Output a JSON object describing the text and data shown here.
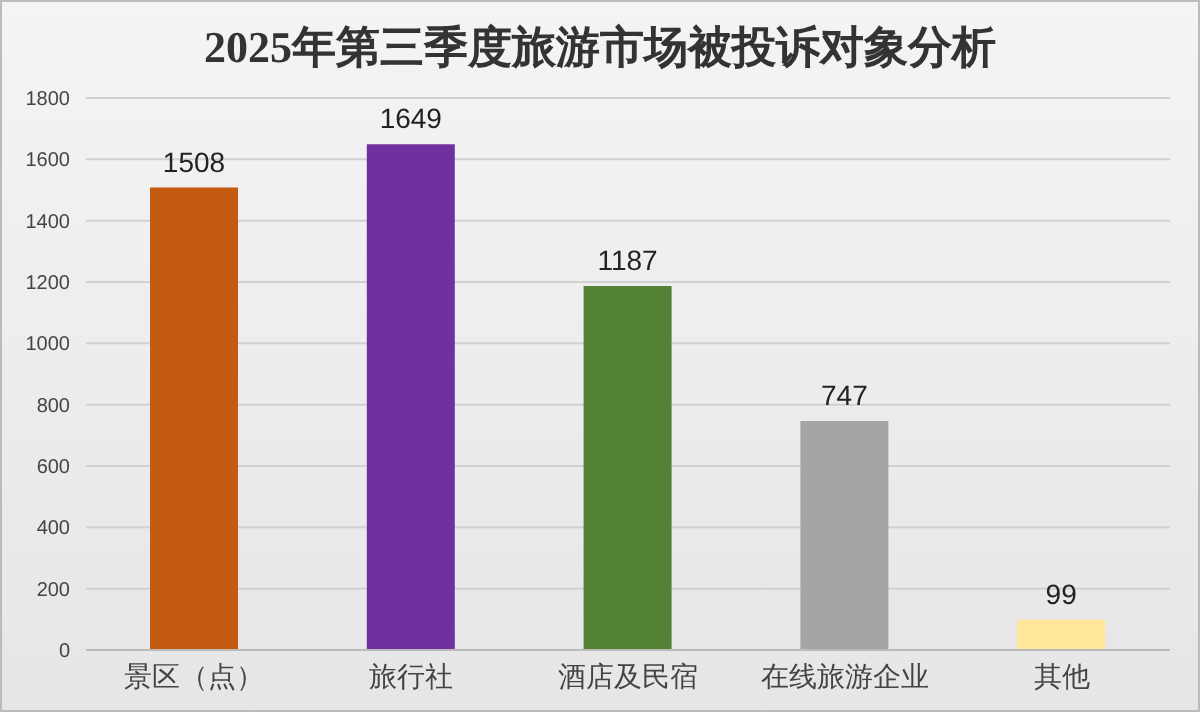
{
  "chart_data": {
    "type": "bar",
    "title": "2025年第三季度旅游市场被投诉对象分析",
    "categories": [
      "景区（点）",
      "旅行社",
      "酒店及民宿",
      "在线旅游企业",
      "其他"
    ],
    "values": [
      1508,
      1649,
      1187,
      747,
      99
    ],
    "colors": [
      "#c55a11",
      "#7030a0",
      "#548235",
      "#a5a5a5",
      "#ffe699"
    ],
    "ylim": [
      0,
      1800
    ],
    "yticks": [
      0,
      200,
      400,
      600,
      800,
      1000,
      1200,
      1400,
      1600,
      1800
    ],
    "grid": "y",
    "data_labels": true
  }
}
